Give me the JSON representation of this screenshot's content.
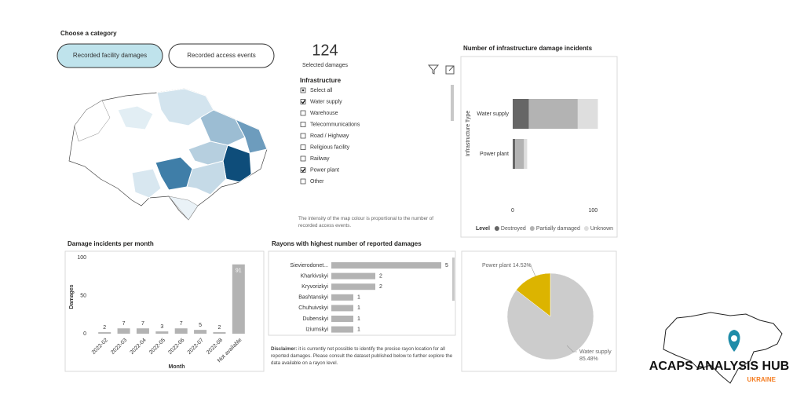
{
  "category_label": "Choose a category",
  "buttons": [
    {
      "label": "Recorded facility damages",
      "active": true
    },
    {
      "label": "Recorded access events",
      "active": false
    }
  ],
  "kpi": {
    "value": 124,
    "label": "Selected damages"
  },
  "slicer": {
    "title": "Infrastructure",
    "items": [
      {
        "label": "Select all",
        "state": "partial"
      },
      {
        "label": "Water supply",
        "state": "checked"
      },
      {
        "label": "Warehouse",
        "state": "unchecked"
      },
      {
        "label": "Telecommunications",
        "state": "unchecked"
      },
      {
        "label": "Road / Highway",
        "state": "unchecked"
      },
      {
        "label": "Religious facility",
        "state": "unchecked"
      },
      {
        "label": "Railway",
        "state": "unchecked"
      },
      {
        "label": "Power plant",
        "state": "checked"
      },
      {
        "label": "Other",
        "state": "unchecked"
      }
    ]
  },
  "map_note": "The intensity of the map colour is proportional to the number of recorded access events.",
  "chart_data": [
    {
      "type": "stacked_bar",
      "orientation": "horizontal",
      "title": "Number of infrastructure damage incidents",
      "y_label": "Infrastructure Type",
      "categories": [
        "Water supply",
        "Power plant"
      ],
      "series": [
        {
          "name": "Destroyed",
          "color": "#666666",
          "values": [
            20,
            3
          ]
        },
        {
          "name": "Partially damaged",
          "color": "#b3b3b3",
          "values": [
            61,
            11
          ]
        },
        {
          "name": "Unknown",
          "color": "#dedede",
          "values": [
            25,
            4
          ]
        }
      ],
      "xlim": [
        0,
        130
      ],
      "xticks": [
        0,
        100
      ],
      "legend_title": "Level",
      "legend": "bottom"
    },
    {
      "type": "bar",
      "orientation": "vertical",
      "title": "Damage incidents per month",
      "x_label": "Month",
      "y_label": "Damages",
      "categories": [
        "2022-02",
        "2022-03",
        "2022-04",
        "2022-05",
        "2022-06",
        "2022-07",
        "2022-08",
        "Not available"
      ],
      "values": [
        2,
        7,
        7,
        3,
        7,
        5,
        2,
        91
      ],
      "color": "#b3b3b3",
      "ylim": [
        0,
        100
      ],
      "yticks": [
        0,
        50,
        100
      ]
    },
    {
      "type": "bar",
      "orientation": "horizontal",
      "title": "Rayons with highest number of reported damages",
      "categories": [
        "Sievierodonet...",
        "Kharkivskyi",
        "Kryvorizkyi",
        "Bashtanskyi",
        "Chuhuivskyi",
        "Dubenskyi",
        "Iziumskyi"
      ],
      "values": [
        5,
        2,
        2,
        1,
        1,
        1,
        1
      ],
      "color": "#b3b3b3",
      "xlim": [
        0,
        5
      ]
    },
    {
      "type": "pie",
      "categories": [
        "Water supply",
        "Power plant"
      ],
      "values": [
        85.48,
        14.52
      ],
      "value_labels": [
        "85.48%",
        "14.52%"
      ],
      "colors": [
        "#cccccc",
        "#dcb400"
      ]
    }
  ],
  "disclaimer": {
    "label": "Disclaimer:",
    "text": "it is currently not possible to identify the precise rayon location for all reported damages. Please consult the dataset published below to further explore the data available on a rayon level."
  },
  "logo": {
    "title": "ACAPS ANALYSIS HUB",
    "subtitle": "UKRAINE"
  }
}
